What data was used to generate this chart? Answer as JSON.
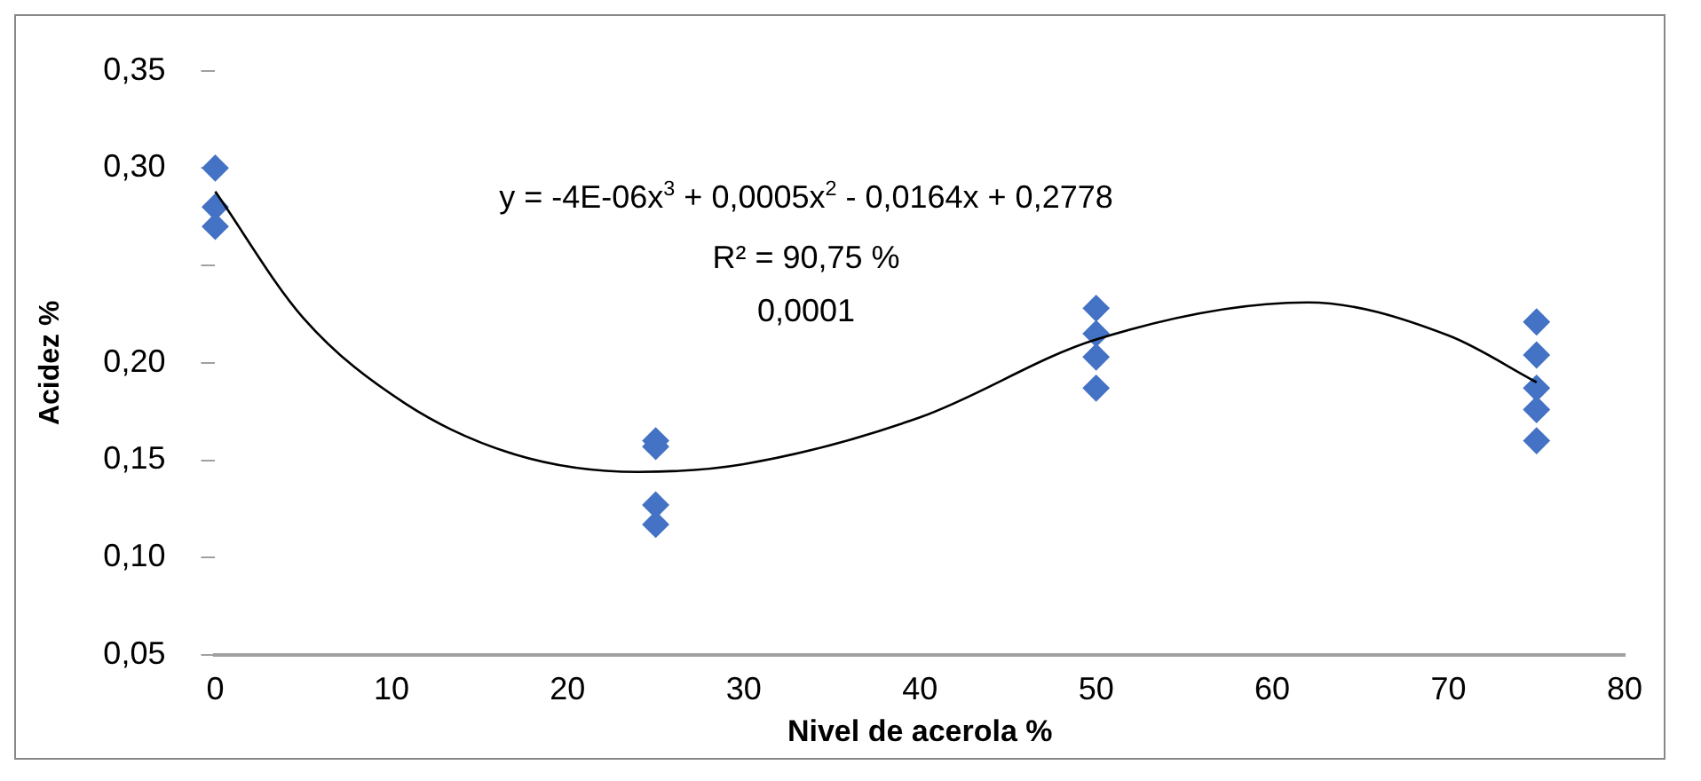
{
  "chart_data": {
    "type": "scatter",
    "xlabel": "Nivel de acerola %",
    "ylabel": "Acidez %",
    "marker": "diamond",
    "grid": false,
    "legend": false,
    "xlim": [
      0,
      80
    ],
    "xticks": [
      0,
      10,
      20,
      30,
      40,
      50,
      60,
      70,
      80
    ],
    "ylim": [
      0.05,
      0.35
    ],
    "yticks": [
      {
        "value": 0.05,
        "label": "0,05"
      },
      {
        "value": 0.1,
        "label": "0,10"
      },
      {
        "value": 0.15,
        "label": "0,15"
      },
      {
        "value": 0.2,
        "label": "0,20"
      },
      {
        "value": 0.25,
        "label": null
      },
      {
        "value": 0.3,
        "label": "0,30"
      },
      {
        "value": 0.35,
        "label": "0,35"
      }
    ],
    "series": [
      {
        "color": "#4472c4",
        "x": [
          0,
          0,
          0,
          25,
          25,
          25,
          25,
          50,
          50,
          50,
          50,
          75,
          75,
          75,
          75,
          75
        ],
        "values": [
          0.3,
          0.28,
          0.27,
          0.16,
          0.157,
          0.127,
          0.117,
          0.228,
          0.215,
          0.203,
          0.187,
          0.221,
          0.204,
          0.187,
          0.176,
          0.16
        ]
      },
      {
        "type": "line",
        "color": "#000000",
        "marker": "none",
        "x": [
          0,
          5,
          10.8,
          17,
          24,
          30,
          40,
          50,
          62,
          70,
          75
        ],
        "values": [
          0.288,
          0.223,
          0.179,
          0.153,
          0.144,
          0.148,
          0.172,
          0.212,
          0.231,
          0.214,
          0.19
        ]
      }
    ],
    "annotations": [
      "y = -4E-06x$^{3}$ + 0,0005x$^{2}$ - 0,0164x + 0,2778",
      "R² = 90,75 %",
      "0,0001"
    ]
  }
}
